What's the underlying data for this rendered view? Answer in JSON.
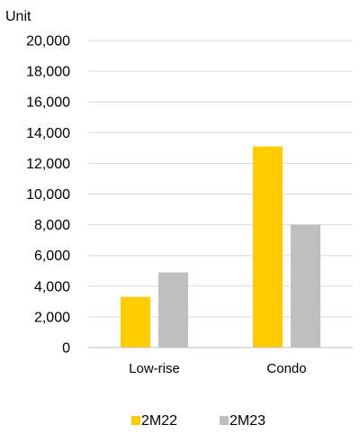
{
  "chart_data": {
    "type": "bar",
    "unit_label": "Unit",
    "categories": [
      "Low-rise",
      "Condo"
    ],
    "series": [
      {
        "name": "2M22",
        "values": [
          3300,
          13100
        ],
        "color": "#FFCC00"
      },
      {
        "name": "2M23",
        "values": [
          4900,
          8000
        ],
        "color": "#BFBFBF"
      }
    ],
    "ylim": [
      0,
      20000
    ],
    "yticks": [
      0,
      2000,
      4000,
      6000,
      8000,
      10000,
      12000,
      14000,
      16000,
      18000,
      20000
    ],
    "ytick_labels": [
      "0",
      "2,000",
      "4,000",
      "6,000",
      "8,000",
      "10,000",
      "12,000",
      "14,000",
      "16,000",
      "18,000",
      "20,000"
    ],
    "grid": true,
    "legend_position": "bottom"
  }
}
